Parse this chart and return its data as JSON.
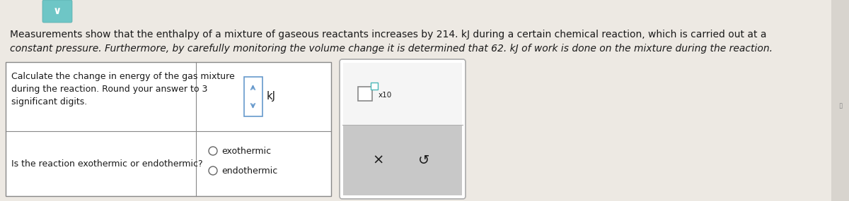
{
  "bg_color": "#ede9e3",
  "text_color": "#1a1a1a",
  "line1": "Measurements show that the enthalpy of a mixture of gaseous reactants increases by 214. kJ during a certain chemical reaction, which is carried out at a",
  "line2": "constant pressure. Furthermore, by carefully monitoring the volume change it is determined that 62. kJ of work is done on the mixture during the reaction.",
  "q1_text_line1": "Calculate the change in energy of the gas mixture",
  "q1_text_line2": "during the reaction. Round your answer to 3",
  "q1_text_line3": "significant digits.",
  "q1_answer_label": "kJ",
  "q2_text": "Is the reaction exothermic or endothermic?",
  "q2_option1": "exothermic",
  "q2_option2": "endothermic",
  "side_x10_label": "x10",
  "side_panel_x": "×",
  "side_panel_s": "↺",
  "table_border_color": "#888888",
  "chevron_bg": "#6ec6c6",
  "chevron_char": "∨",
  "right_panel_border": "#b0b0b0",
  "right_panel_top_bg": "#f5f5f5",
  "right_panel_bot_bg": "#c8c8c8",
  "checkbox_border": "#888888",
  "checkbox_sup_border": "#4ab8b8",
  "input_border": "#6699cc",
  "font_size_body": 10.0,
  "font_size_table": 9.0,
  "font_size_answer": 10.5,
  "font_size_side": 14
}
